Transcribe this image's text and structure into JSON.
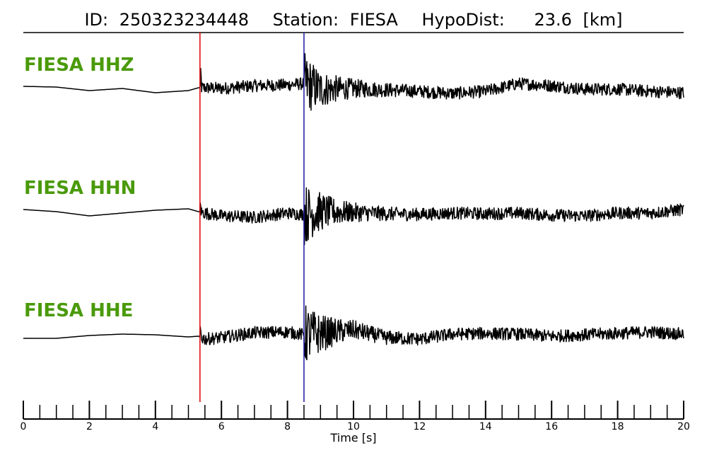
{
  "figure": {
    "title": {
      "id_label": "ID:",
      "id_value": "250323234448",
      "station_label": "Station:",
      "station_value": "FIESA",
      "dist_label": "HypoDist:",
      "dist_value": "23.6",
      "dist_unit": "[km]"
    }
  },
  "colors": {
    "trace": "#000000",
    "label": "#4a9a0a",
    "p_pick": "#e00000",
    "s_pick": "#1a1aa0"
  },
  "chart_data": {
    "type": "line",
    "xlabel": "Time [s]",
    "xlim": [
      0,
      20
    ],
    "x_major_ticks": [
      0,
      2,
      4,
      6,
      8,
      10,
      12,
      14,
      16,
      18,
      20
    ],
    "x_minor_step": 0.5,
    "grid": false,
    "picks": [
      {
        "phase": "P",
        "time": 5.35,
        "color": "#e00000"
      },
      {
        "phase": "S",
        "time": 8.5,
        "color": "#1a1aa0"
      }
    ],
    "series": [
      {
        "name": "FIESA HHZ",
        "envelope": [
          [
            0,
            0.4
          ],
          [
            1,
            0.35
          ],
          [
            2,
            0.1
          ],
          [
            3,
            0.25
          ],
          [
            4,
            -0.05
          ],
          [
            5,
            0.1
          ],
          [
            5.3,
            0.3
          ],
          [
            5.5,
            0.3
          ],
          [
            6,
            0.25
          ],
          [
            7,
            0.45
          ],
          [
            8,
            0.5
          ],
          [
            8.5,
            0.6
          ],
          [
            9,
            0.2
          ],
          [
            10,
            0.25
          ],
          [
            11,
            0.15
          ],
          [
            12,
            0.05
          ],
          [
            13,
            -0.1
          ],
          [
            14,
            0.05
          ],
          [
            15,
            0.6
          ],
          [
            16,
            0.45
          ],
          [
            17,
            0.2
          ],
          [
            18,
            0.2
          ],
          [
            19,
            0.05
          ],
          [
            20,
            -0.05
          ]
        ]
      },
      {
        "name": "FIESA HHN",
        "envelope": [
          [
            0,
            0.45
          ],
          [
            1,
            0.3
          ],
          [
            2,
            0.0
          ],
          [
            3,
            0.2
          ],
          [
            4,
            0.4
          ],
          [
            5,
            0.5
          ],
          [
            5.3,
            0.3
          ],
          [
            5.5,
            0.2
          ],
          [
            6,
            0.0
          ],
          [
            7,
            -0.1
          ],
          [
            8,
            0.2
          ],
          [
            8.5,
            0.1
          ],
          [
            9,
            0.3
          ],
          [
            10,
            0.25
          ],
          [
            11,
            0.15
          ],
          [
            12,
            0.1
          ],
          [
            13,
            0.2
          ],
          [
            14,
            0.15
          ],
          [
            15,
            0.2
          ],
          [
            16,
            0.05
          ],
          [
            17,
            0.0
          ],
          [
            18,
            0.2
          ],
          [
            19,
            0.2
          ],
          [
            20,
            0.45
          ]
        ]
      },
      {
        "name": "FIESA HHE",
        "envelope": [
          [
            0,
            -0.15
          ],
          [
            1,
            -0.15
          ],
          [
            2,
            0.05
          ],
          [
            3,
            0.15
          ],
          [
            4,
            0.1
          ],
          [
            5,
            -0.05
          ],
          [
            5.3,
            0.0
          ],
          [
            5.5,
            -0.2
          ],
          [
            6,
            -0.1
          ],
          [
            7,
            0.25
          ],
          [
            8,
            0.3
          ],
          [
            8.5,
            0.1
          ],
          [
            9,
            0.2
          ],
          [
            10,
            0.45
          ],
          [
            11,
            -0.1
          ],
          [
            12,
            -0.2
          ],
          [
            13,
            0.15
          ],
          [
            14,
            0.2
          ],
          [
            15,
            0.15
          ],
          [
            16,
            0.0
          ],
          [
            17,
            0.1
          ],
          [
            18,
            0.2
          ],
          [
            19,
            0.3
          ],
          [
            20,
            0.15
          ]
        ]
      }
    ]
  }
}
